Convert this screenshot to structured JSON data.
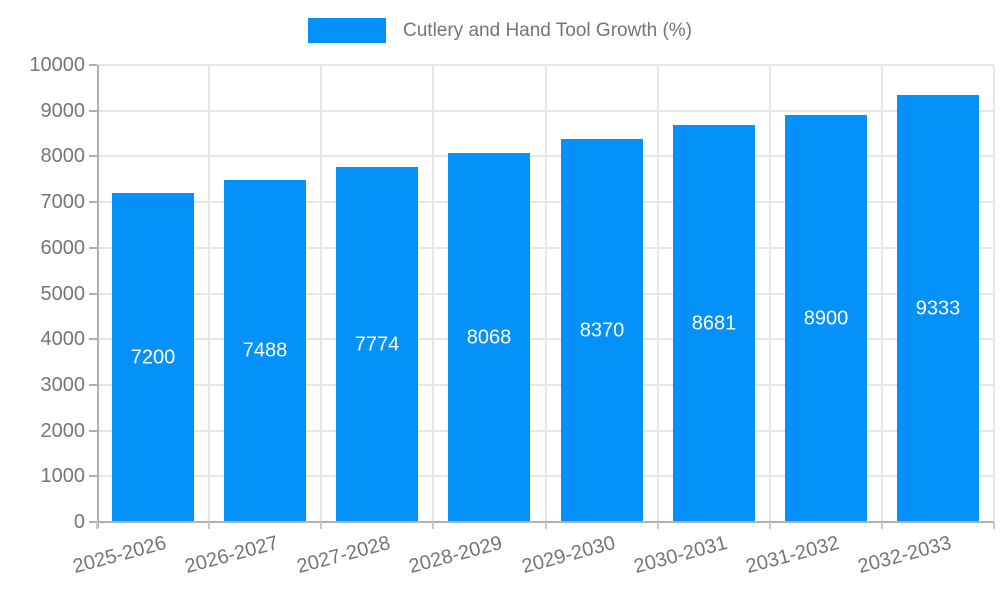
{
  "chart_data": {
    "type": "bar",
    "title": "Cutlery and Hand Tool Growth (%)",
    "categories": [
      "2025-2026",
      "2026-2027",
      "2027-2028",
      "2028-2029",
      "2029-2030",
      "2030-2031",
      "2031-2032",
      "2032-2033"
    ],
    "values": [
      7200,
      7488,
      7774,
      8068,
      8370,
      8681,
      8900,
      9333
    ],
    "xlabel": "",
    "ylabel": "",
    "ylim": [
      0,
      10000
    ],
    "ytick_step": 1000,
    "grid": true,
    "legend_position": "top-center",
    "value_labels": "inside-middle",
    "colors": {
      "bar": "#0591fa",
      "grid": "#e6e6e6",
      "axis": "#b0b0b0",
      "tick_text": "#757575",
      "value_label_text": "#ffffff",
      "background": "#ffffff"
    }
  }
}
